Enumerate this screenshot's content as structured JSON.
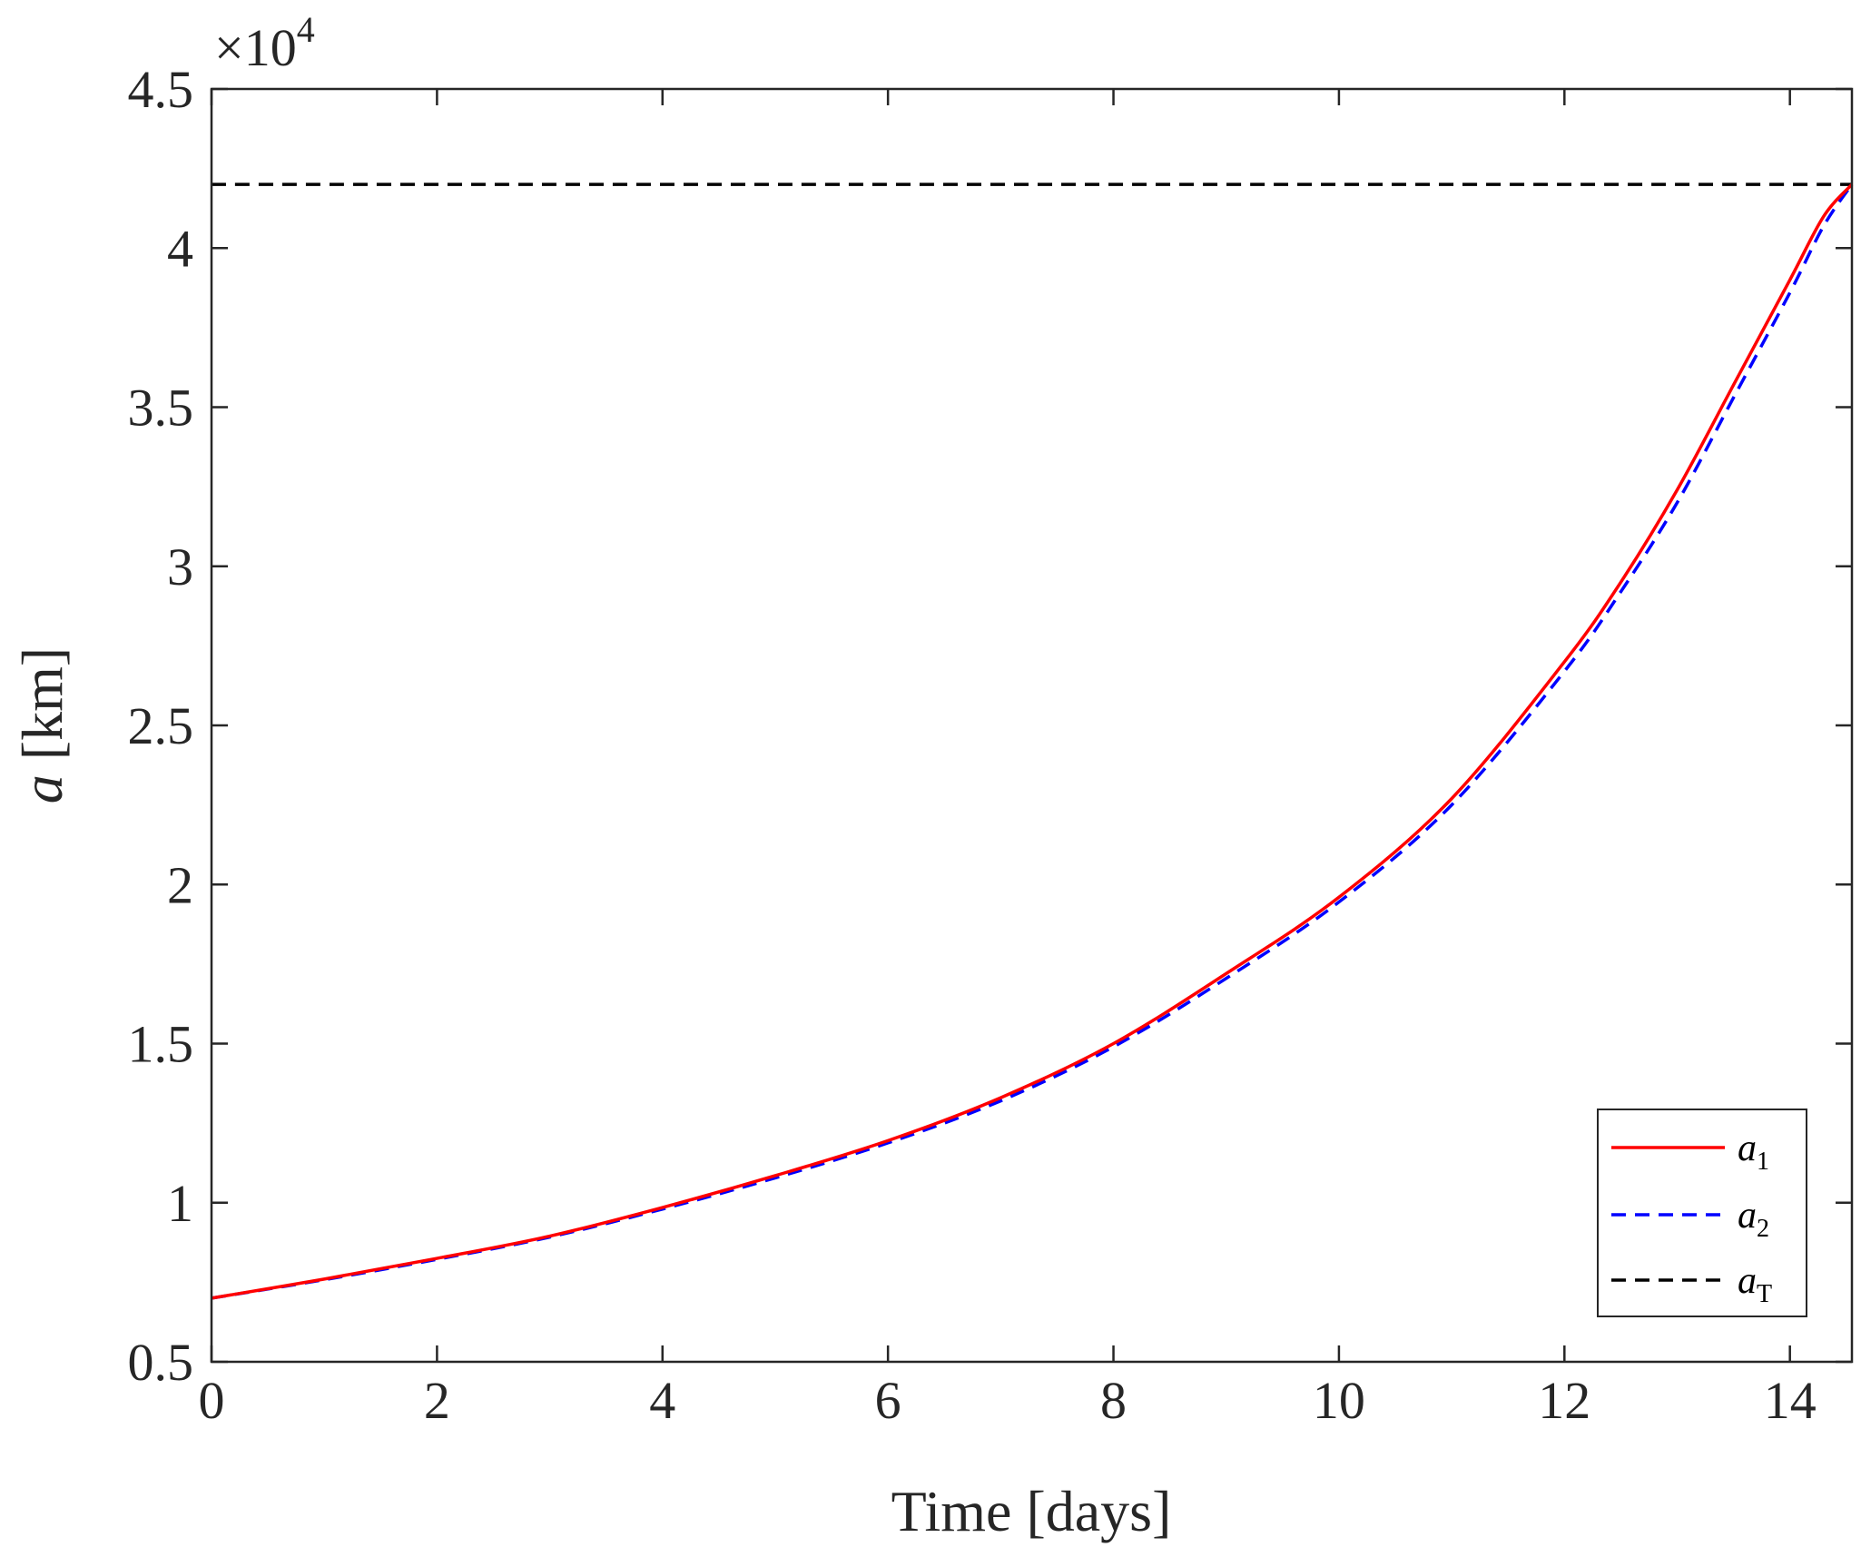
{
  "chart_data": {
    "type": "line",
    "xlabel": "Time [days]",
    "ylabel_var": "a",
    "ylabel_unit": " [km]",
    "y_multiplier": "×10",
    "y_multiplier_exp": "4",
    "xlim": [
      0,
      14.55
    ],
    "ylim": [
      0.5,
      4.5
    ],
    "x_ticks": [
      0,
      2,
      4,
      6,
      8,
      10,
      12,
      14
    ],
    "x_tick_labels": [
      "0",
      "2",
      "4",
      "6",
      "8",
      "10",
      "12",
      "14"
    ],
    "y_ticks": [
      0.5,
      1,
      1.5,
      2,
      2.5,
      3,
      3.5,
      4,
      4.5
    ],
    "y_tick_labels": [
      "0.5",
      "1",
      "1.5",
      "2",
      "2.5",
      "3",
      "3.5",
      "4",
      "4.5"
    ],
    "grid": false,
    "legend_position": "bottom-right",
    "series": [
      {
        "name": "a",
        "subscript": "1",
        "color": "#ff0000",
        "dash": "solid",
        "x": [
          0,
          1,
          2,
          3,
          4,
          5,
          6,
          7,
          8,
          9,
          10,
          11,
          12,
          12.5,
          13,
          13.5,
          14,
          14.3,
          14.55
        ],
        "y": [
          0.7,
          0.76,
          0.825,
          0.895,
          0.985,
          1.085,
          1.195,
          1.33,
          1.5,
          1.72,
          1.96,
          2.27,
          2.7,
          2.95,
          3.24,
          3.57,
          3.9,
          4.1,
          4.2
        ]
      },
      {
        "name": "a",
        "subscript": "2",
        "color": "#0000ff",
        "dash": "dashed",
        "x": [
          0,
          1,
          2,
          3,
          4,
          5,
          6,
          7,
          8,
          9,
          10,
          11,
          12,
          12.5,
          13,
          13.5,
          14,
          14.3,
          14.55
        ],
        "y": [
          0.7,
          0.758,
          0.822,
          0.892,
          0.98,
          1.078,
          1.188,
          1.32,
          1.49,
          1.705,
          1.945,
          2.25,
          2.67,
          2.92,
          3.2,
          3.53,
          3.86,
          4.07,
          4.2
        ]
      },
      {
        "name": "a",
        "subscript": "T",
        "color": "#000000",
        "dash": "dashed",
        "x": [
          0,
          14.55
        ],
        "y": [
          4.2,
          4.2
        ]
      }
    ]
  }
}
